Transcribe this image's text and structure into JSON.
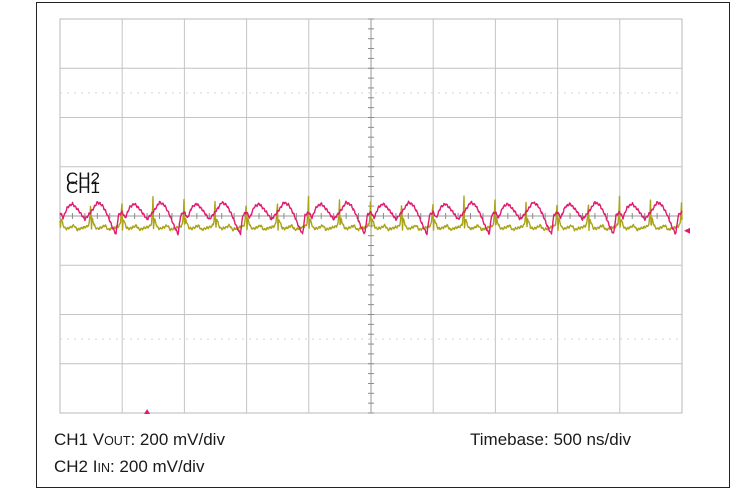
{
  "chart_data": {
    "type": "line",
    "title": "",
    "xlabel": "",
    "ylabel": "",
    "grid": true,
    "divisions": {
      "x": 10,
      "y": 8
    },
    "timebase": {
      "label": "Timebase:",
      "value": "500 ns/div"
    },
    "time_range_ns": [
      0,
      5000
    ],
    "series": [
      {
        "name": "CH1",
        "color": "#a8a318",
        "caption_prefix": "CH1 V",
        "caption_sub": "OUT",
        "caption_scale": ": 200 mV/div",
        "scale_mV_per_div": 200,
        "period_div": 0.5,
        "offset_div": -0.1,
        "ground_div": -1.3,
        "ground_marker": "left",
        "waveform_mV": {
          "phase": [
            0.0,
            0.01,
            0.03,
            0.08,
            0.14,
            0.22,
            0.34,
            0.45,
            0.55,
            0.68,
            0.78,
            0.88,
            0.94,
            0.975,
            0.99,
            1.0
          ],
          "value": [
            0,
            -40,
            12,
            -8,
            -28,
            -32,
            -26,
            -18,
            -36,
            -30,
            -26,
            -22,
            -12,
            40,
            100,
            0
          ]
        }
      },
      {
        "name": "CH2",
        "color": "#e01a6e",
        "caption_prefix": "CH2 I",
        "caption_sub": "IN",
        "caption_scale": ": 200 mV/div",
        "scale_mV_per_div": 200,
        "period_div": 1.0,
        "offset_div": 0.08,
        "ground_div": -0.3,
        "ground_marker": "right",
        "waveform_mV": {
          "phase": [
            0.0,
            0.05,
            0.12,
            0.2,
            0.3,
            0.4,
            0.47,
            0.53,
            0.6,
            0.68,
            0.76,
            0.84,
            0.9,
            0.94,
            1.0
          ],
          "value": [
            0,
            -24,
            20,
            34,
            6,
            -30,
            -8,
            12,
            40,
            28,
            -10,
            -60,
            -90,
            -12,
            0
          ]
        }
      }
    ],
    "trigger_marker_div": -3.6
  }
}
